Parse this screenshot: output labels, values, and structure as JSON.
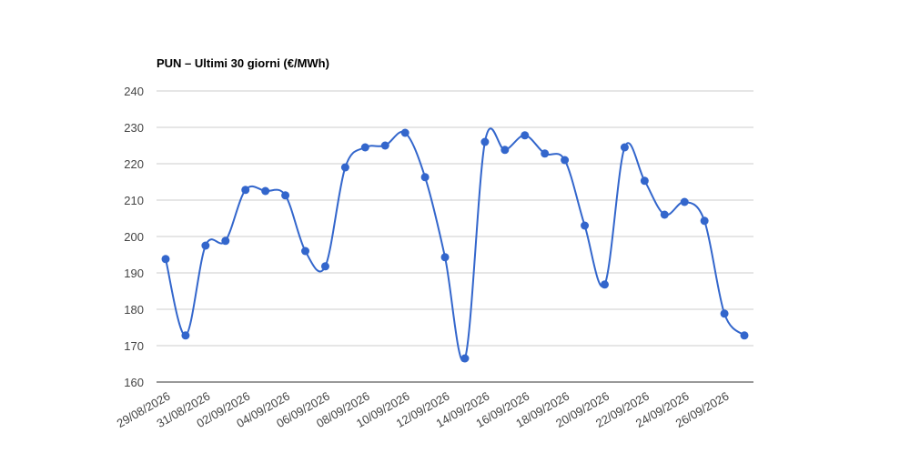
{
  "chart_data": {
    "type": "line",
    "title": "PUN – Ultimi 30 giorni (€/MWh)",
    "categories": [
      "29/08/2026",
      null,
      "31/08/2026",
      null,
      "02/09/2026",
      null,
      "04/09/2026",
      null,
      "06/09/2026",
      null,
      "08/09/2026",
      null,
      "10/09/2026",
      null,
      "12/09/2026",
      null,
      "14/09/2026",
      null,
      "16/09/2026",
      null,
      "18/09/2026",
      null,
      "20/09/2026",
      null,
      "22/09/2026",
      null,
      "24/09/2026",
      null,
      "26/09/2026",
      null
    ],
    "series": [
      {
        "name": "PUN",
        "color": "#3366cc",
        "values": [
          193.8,
          172.8,
          197.5,
          198.8,
          212.8,
          212.5,
          211.3,
          196,
          191.8,
          219,
          224.5,
          225,
          228.5,
          216.3,
          194.3,
          166.5,
          226,
          223.8,
          227.8,
          222.8,
          221,
          203,
          186.8,
          224.5,
          215.3,
          206,
          209.5,
          204.3,
          178.8,
          172.8
        ]
      }
    ],
    "ylim": [
      160,
      240
    ],
    "yticks": [
      160,
      170,
      180,
      190,
      200,
      210,
      220,
      230,
      240
    ],
    "grid": true
  }
}
